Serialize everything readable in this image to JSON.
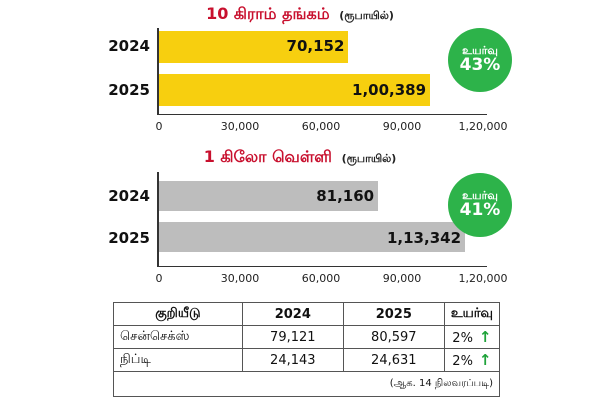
{
  "chart_data": [
    {
      "type": "bar",
      "orientation": "horizontal",
      "title": "10 கிராம் தங்கம்",
      "unit": "(ரூபாயில்)",
      "categories": [
        "2024",
        "2025"
      ],
      "values": [
        70152,
        100389
      ],
      "value_labels": [
        "70,152",
        "1,00,389"
      ],
      "xlim": [
        0,
        120000
      ],
      "xticks": [
        0,
        30000,
        60000,
        90000,
        120000
      ],
      "xtick_labels": [
        "0",
        "30,000",
        "60,000",
        "90,000",
        "1,20,000"
      ],
      "bar_color": "#f7cf0f",
      "badge": {
        "line1": "உயர்வு",
        "line2": "43%",
        "color": "#2db34a"
      }
    },
    {
      "type": "bar",
      "orientation": "horizontal",
      "title": "1 கிலோ வெள்ளி",
      "unit": "(ரூபாயில்)",
      "categories": [
        "2024",
        "2025"
      ],
      "values": [
        81160,
        113342
      ],
      "value_labels": [
        "81,160",
        "1,13,342"
      ],
      "xlim": [
        0,
        120000
      ],
      "xticks": [
        0,
        30000,
        60000,
        90000,
        120000
      ],
      "xtick_labels": [
        "0",
        "30,000",
        "60,000",
        "90,000",
        "1,20,000"
      ],
      "bar_color": "#bdbdbd",
      "badge": {
        "line1": "உயர்வு",
        "line2": "41%",
        "color": "#2db34a"
      }
    }
  ],
  "table": {
    "headers": [
      "குறியீடு",
      "2024",
      "2025",
      "உயர்வு"
    ],
    "rows": [
      [
        "சென்செக்ஸ்",
        "79,121",
        "80,597",
        "2%"
      ],
      [
        "நிப்டி",
        "24,143",
        "24,631",
        "2%"
      ]
    ],
    "note": "(ஆக. 14 நிலவரப்படி)",
    "arrow_color": "#1fa33a"
  }
}
